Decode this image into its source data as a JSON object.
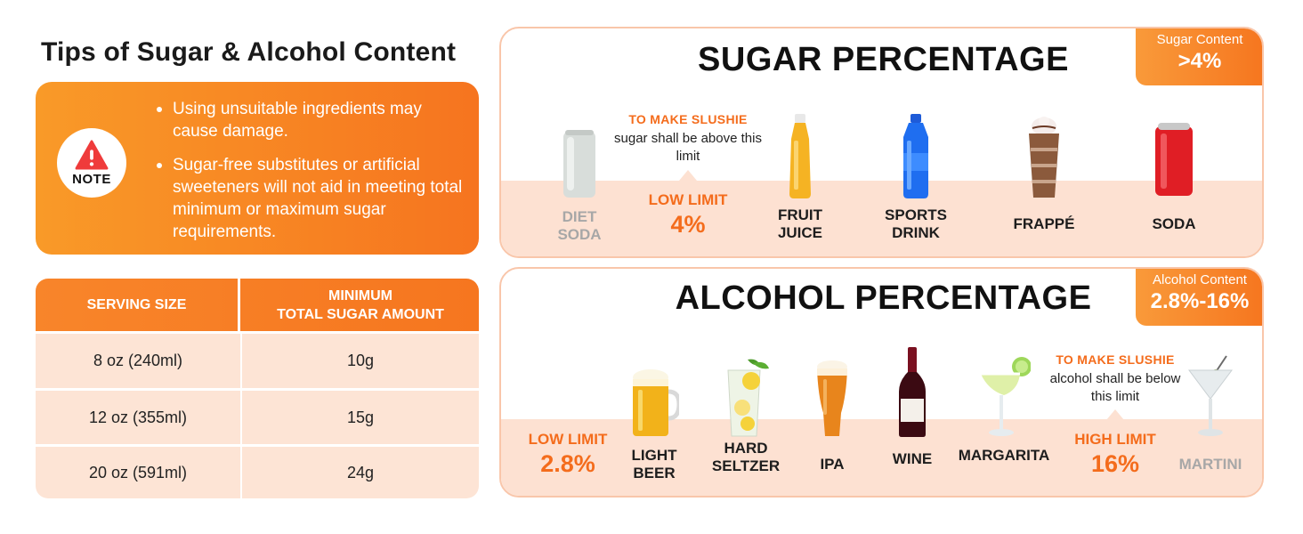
{
  "tips": {
    "title": "Tips of Sugar & Alcohol Content",
    "note_label": "NOTE",
    "bullets": [
      "Using unsuitable ingredients may cause damage.",
      "Sugar-free substitutes or artificial sweeteners will not aid in meeting total minimum or maximum sugar requirements."
    ]
  },
  "table": {
    "headers": [
      "SERVING SIZE",
      "MINIMUM\nTOTAL SUGAR AMOUNT"
    ],
    "rows": [
      [
        "8 oz (240ml)",
        "10g"
      ],
      [
        "12 oz (355ml)",
        "15g"
      ],
      [
        "20 oz (591ml)",
        "24g"
      ]
    ]
  },
  "sugar": {
    "title": "SUGAR PERCENTAGE",
    "badge_label": "Sugar Content",
    "badge_value": ">4%",
    "note_head": "TO MAKE SLUSHIE",
    "note_body": "sugar shall be above this limit",
    "limit_name": "LOW LIMIT",
    "limit_value": "4%",
    "items": [
      "DIET\nSODA",
      "FRUIT\nJUICE",
      "SPORTS\nDRINK",
      "FRAPPÉ",
      "SODA"
    ]
  },
  "alcohol": {
    "title": "ALCOHOL PERCENTAGE",
    "badge_label": "Alcohol Content",
    "badge_value": "2.8%-16%",
    "note_head": "TO MAKE SLUSHIE",
    "note_body": "alcohol shall be below this limit",
    "low_name": "LOW LIMIT",
    "low_value": "2.8%",
    "high_name": "HIGH LIMIT",
    "high_value": "16%",
    "items": [
      "LIGHT\nBEER",
      "HARD\nSELTZER",
      "IPA",
      "WINE",
      "MARGARITA",
      "MARTINI"
    ]
  },
  "colors": {
    "accent": "#f6761f",
    "accent_light": "#f99a28",
    "band": "#fde1d2",
    "border": "#f9c6aa"
  }
}
